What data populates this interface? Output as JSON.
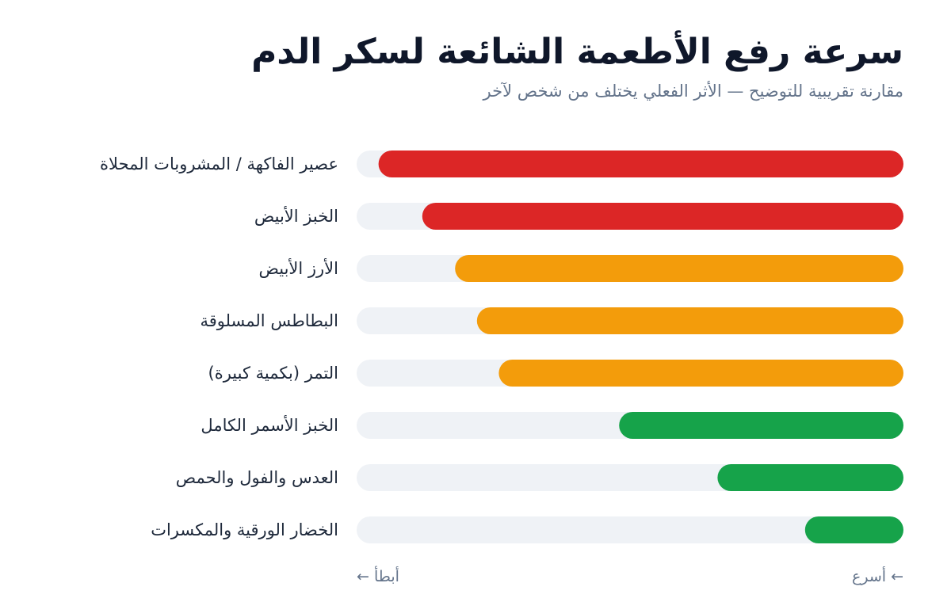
{
  "title": "سرعة رفع الأطعمة الشائعة لسكر الدم",
  "subtitle": "مقارنة تقريبية للتوضيح — الأثر الفعلي يختلف من شخص لآخر",
  "axis": {
    "slower_label": "أبطأ ←",
    "faster_label": "← أسرع"
  },
  "colors": {
    "track": "#eff2f6",
    "high": "#dc2626",
    "medium": "#f39c0b",
    "low": "#16a34a",
    "label": "#1e293b"
  },
  "chart_data": {
    "type": "bar",
    "orientation": "horizontal",
    "categories": [
      "عصير الفاكهة / المشروبات المحلاة",
      "الخبز الأبيض",
      "الأرز الأبيض",
      "البطاطس المسلوقة",
      "التمر (بكمية كبيرة)",
      "الخبز الأسمر الكامل",
      "العدس والفول والحمص",
      "الخضار الورقية والمكسرات"
    ],
    "values": [
      96,
      88,
      82,
      78,
      74,
      52,
      34,
      18
    ],
    "levels": [
      "high",
      "high",
      "medium",
      "medium",
      "medium",
      "low",
      "low",
      "low"
    ],
    "xlim": [
      0,
      100
    ],
    "xlabel": "",
    "ylabel": "",
    "grid": false,
    "legend": "none"
  }
}
